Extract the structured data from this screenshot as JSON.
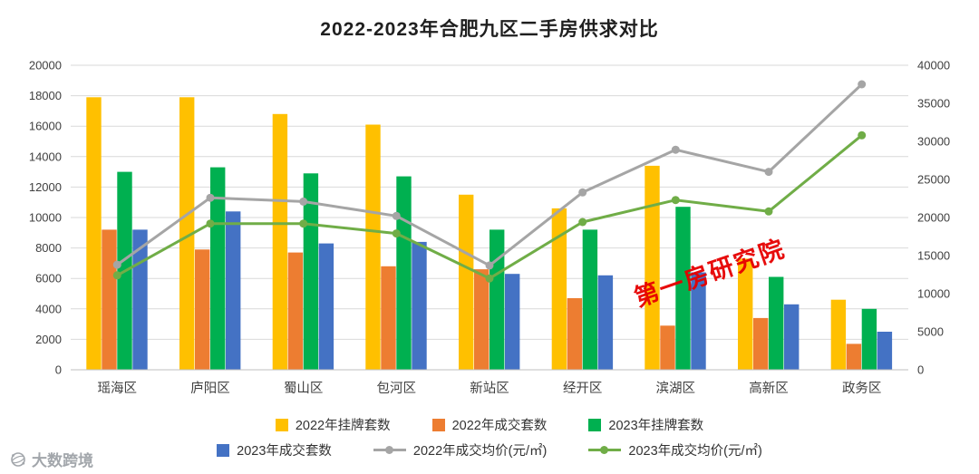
{
  "chart_data": {
    "type": "bar",
    "subtype": "grouped-bars-with-lines",
    "title": "2022-2023年合肥九区二手房供求对比",
    "categories": [
      "瑶海区",
      "庐阳区",
      "蜀山区",
      "包河区",
      "新站区",
      "经开区",
      "滨湖区",
      "高新区",
      "政务区"
    ],
    "bar_series": [
      {
        "name": "2022年挂牌套数",
        "color": "#FFC000",
        "axis": "left",
        "values": [
          17900,
          17900,
          16800,
          16100,
          11500,
          10600,
          13400,
          7300,
          4600
        ]
      },
      {
        "name": "2022年成交套数",
        "color": "#ED7D31",
        "axis": "left",
        "values": [
          9200,
          7900,
          7700,
          6800,
          6600,
          4700,
          2900,
          3400,
          1700
        ]
      },
      {
        "name": "2023年挂牌套数",
        "color": "#00B050",
        "axis": "left",
        "values": [
          13000,
          13300,
          12900,
          12700,
          9200,
          9200,
          10700,
          6100,
          4000
        ]
      },
      {
        "name": "2023年成交套数",
        "color": "#4472C4",
        "axis": "left",
        "values": [
          9200,
          10400,
          8300,
          8400,
          6300,
          6200,
          6400,
          4300,
          2500
        ]
      }
    ],
    "line_series": [
      {
        "name": "2022年成交均价(元/㎡)",
        "color": "#A5A5A5",
        "axis": "right",
        "values": [
          13800,
          22600,
          22100,
          20200,
          13700,
          23300,
          28900,
          26000,
          37500
        ]
      },
      {
        "name": "2023年成交均价(元/㎡)",
        "color": "#70AD47",
        "axis": "right",
        "values": [
          12400,
          19200,
          19200,
          17900,
          12000,
          19400,
          22300,
          20800,
          30800
        ]
      }
    ],
    "left_axis": {
      "min": 0,
      "max": 20000,
      "step": 2000
    },
    "right_axis": {
      "min": 0,
      "max": 40000,
      "step": 5000
    },
    "grid": true,
    "legend_position": "bottom",
    "gridline_color": "#d9d9d9",
    "tick_label_color": "#404040"
  },
  "watermark": {
    "text": "第一房研究院",
    "color": "#E60000"
  },
  "logo": {
    "text": "大数跨境"
  }
}
